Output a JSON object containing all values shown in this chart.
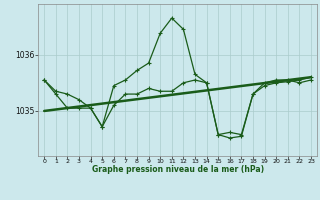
{
  "title": "Graphe pression niveau de la mer (hPa)",
  "background_color": "#cce8ec",
  "grid_color": "#aacccc",
  "line_color": "#1a5c1a",
  "xlim": [
    -0.5,
    23.5
  ],
  "ylim": [
    1034.2,
    1036.9
  ],
  "yticks": [
    1035,
    1036
  ],
  "xticks": [
    0,
    1,
    2,
    3,
    4,
    5,
    6,
    7,
    8,
    9,
    10,
    11,
    12,
    13,
    14,
    15,
    16,
    17,
    18,
    19,
    20,
    21,
    22,
    23
  ],
  "line1_x": [
    0,
    1,
    2,
    3,
    4,
    5,
    6,
    7,
    8,
    9,
    10,
    11,
    12,
    13,
    14,
    15,
    16,
    17,
    18,
    19,
    20,
    21,
    22,
    23
  ],
  "line1_y": [
    1035.55,
    1035.35,
    1035.3,
    1035.2,
    1035.05,
    1034.72,
    1035.45,
    1035.55,
    1035.72,
    1035.85,
    1036.38,
    1036.65,
    1036.45,
    1035.65,
    1035.5,
    1034.58,
    1034.62,
    1034.58,
    1035.3,
    1035.5,
    1035.55,
    1035.55,
    1035.5,
    1035.55
  ],
  "line2_x": [
    0,
    23
  ],
  "line2_y": [
    1035.0,
    1035.6
  ],
  "line3_x": [
    0,
    1,
    2,
    3,
    4,
    5,
    6,
    7,
    8,
    9,
    10,
    11,
    12,
    13,
    14,
    15,
    16,
    17,
    18,
    19,
    20,
    21,
    22,
    23
  ],
  "line3_y": [
    1035.55,
    1035.3,
    1035.05,
    1035.05,
    1035.05,
    1034.72,
    1035.1,
    1035.3,
    1035.3,
    1035.4,
    1035.35,
    1035.35,
    1035.5,
    1035.55,
    1035.5,
    1034.58,
    1034.52,
    1034.55,
    1035.3,
    1035.45,
    1035.5,
    1035.52,
    1035.55,
    1035.6
  ]
}
